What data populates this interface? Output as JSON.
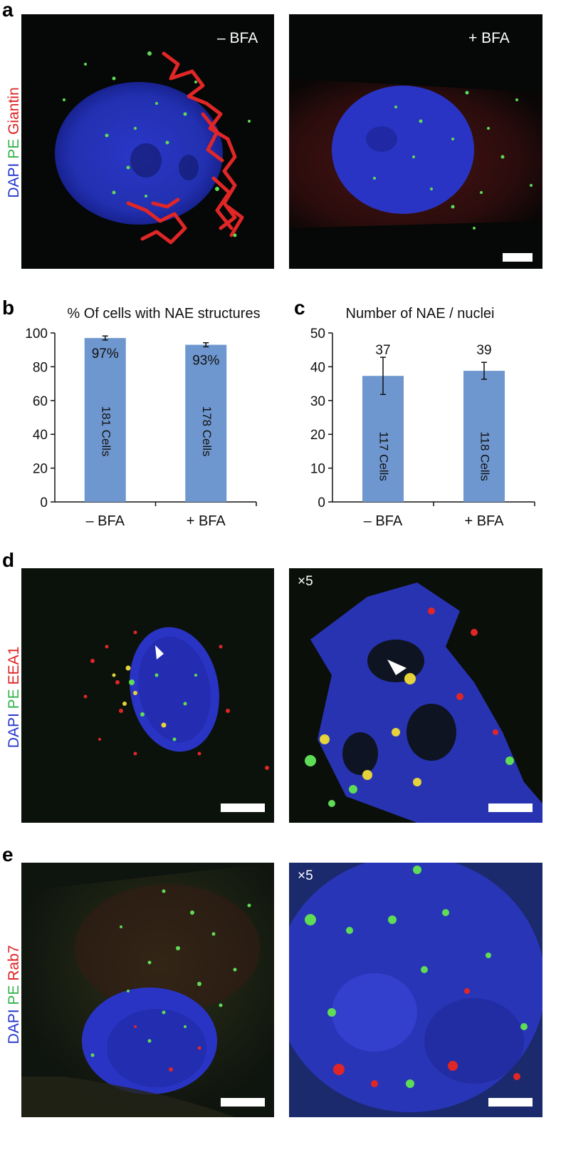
{
  "panels": {
    "a": {
      "letter": "a",
      "stain": {
        "c1": "DAPI",
        "c2": "PE",
        "c3": "Giantin"
      },
      "left_label": "– BFA",
      "right_label": "+ BFA"
    },
    "b": {
      "letter": "b"
    },
    "c": {
      "letter": "c"
    },
    "d": {
      "letter": "d",
      "stain": {
        "c1": "DAPI",
        "c2": "PE",
        "c3": "EEA1"
      },
      "zoom_label": "×5"
    },
    "e": {
      "letter": "e",
      "stain": {
        "c1": "DAPI",
        "c2": "PE",
        "c3": "Rab7"
      },
      "zoom_label": "×5"
    }
  },
  "colors": {
    "dapi": "#2233cc",
    "pe": "#33b24a",
    "red_channel": "#dd2222",
    "bar": "#6f97cf"
  },
  "chart_data": [
    {
      "type": "bar",
      "title": "% Of cells with NAE structures",
      "categories": [
        "– BFA",
        "+ BFA"
      ],
      "values": [
        97,
        93
      ],
      "errors": [
        1.2,
        1.2
      ],
      "value_labels": [
        "97%",
        "93%"
      ],
      "count_labels": [
        "181 Cells",
        "178 Cells"
      ],
      "ylim": [
        0,
        100
      ],
      "yticks": [
        0,
        20,
        40,
        60,
        80,
        100
      ],
      "xlabel": "",
      "ylabel": "",
      "grid": false
    },
    {
      "type": "bar",
      "title": "Number of NAE / nuclei",
      "categories": [
        "– BFA",
        "+ BFA"
      ],
      "values": [
        37.3,
        38.8
      ],
      "errors": [
        5.5,
        2.5
      ],
      "value_labels": [
        "37",
        "39"
      ],
      "count_labels": [
        "117 Cells",
        "118 Cells"
      ],
      "ylim": [
        0,
        50
      ],
      "yticks": [
        0,
        10,
        20,
        30,
        40,
        50
      ],
      "xlabel": "",
      "ylabel": "",
      "grid": false
    }
  ]
}
